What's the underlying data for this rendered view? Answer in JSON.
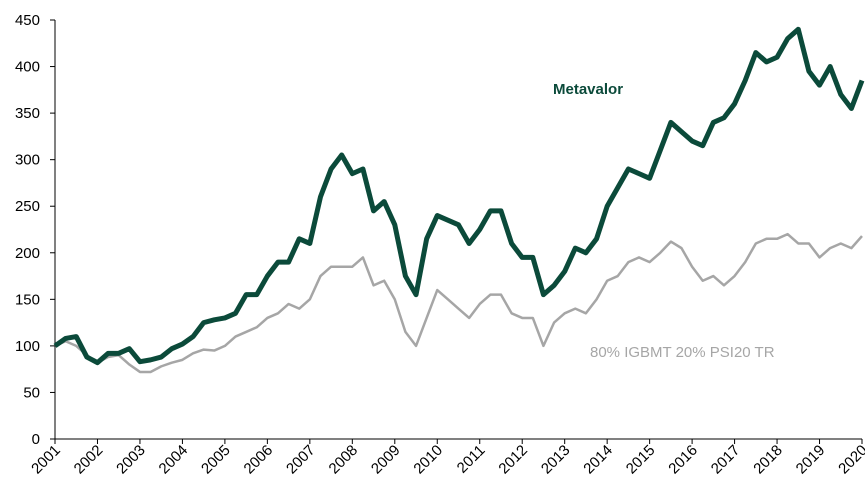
{
  "chart_data": {
    "type": "line",
    "x": [
      2001.0,
      2001.25,
      2001.5,
      2001.75,
      2002.0,
      2002.25,
      2002.5,
      2002.75,
      2003.0,
      2003.25,
      2003.5,
      2003.75,
      2004.0,
      2004.25,
      2004.5,
      2004.75,
      2005.0,
      2005.25,
      2005.5,
      2005.75,
      2006.0,
      2006.25,
      2006.5,
      2006.75,
      2007.0,
      2007.25,
      2007.5,
      2007.75,
      2008.0,
      2008.25,
      2008.5,
      2008.75,
      2009.0,
      2009.25,
      2009.5,
      2009.75,
      2010.0,
      2010.25,
      2010.5,
      2010.75,
      2011.0,
      2011.25,
      2011.5,
      2011.75,
      2012.0,
      2012.25,
      2012.5,
      2012.75,
      2013.0,
      2013.25,
      2013.5,
      2013.75,
      2014.0,
      2014.25,
      2014.5,
      2014.75,
      2015.0,
      2015.25,
      2015.5,
      2015.75,
      2016.0,
      2016.25,
      2016.5,
      2016.75,
      2017.0,
      2017.25,
      2017.5,
      2017.75,
      2018.0,
      2018.25,
      2018.5,
      2018.75,
      2019.0,
      2019.25,
      2019.5,
      2019.75,
      2020.0
    ],
    "series": [
      {
        "name": "80% IGBMT 20% PSI20 TR",
        "color": "#a6a6a6",
        "width": 2.5,
        "values": [
          100,
          105,
          100,
          90,
          82,
          88,
          90,
          80,
          72,
          72,
          78,
          82,
          85,
          92,
          96,
          95,
          100,
          110,
          115,
          120,
          130,
          135,
          145,
          140,
          150,
          175,
          185,
          185,
          185,
          195,
          165,
          170,
          150,
          115,
          100,
          130,
          160,
          150,
          140,
          130,
          145,
          155,
          155,
          135,
          130,
          130,
          100,
          125,
          135,
          140,
          135,
          150,
          170,
          175,
          190,
          195,
          190,
          200,
          212,
          205,
          185,
          170,
          175,
          165,
          175,
          190,
          210,
          215,
          215,
          220,
          210,
          210,
          195,
          205,
          210,
          205,
          218
        ]
      },
      {
        "name": "Metavalor",
        "color": "#0b4a3a",
        "width": 5,
        "values": [
          100,
          108,
          110,
          88,
          82,
          92,
          92,
          97,
          83,
          85,
          88,
          97,
          102,
          110,
          125,
          128,
          130,
          135,
          155,
          155,
          175,
          190,
          190,
          215,
          210,
          260,
          290,
          305,
          285,
          290,
          245,
          255,
          230,
          175,
          155,
          215,
          240,
          235,
          230,
          210,
          225,
          245,
          245,
          210,
          195,
          195,
          155,
          165,
          180,
          205,
          200,
          215,
          250,
          270,
          290,
          285,
          280,
          310,
          340,
          330,
          320,
          315,
          340,
          345,
          360,
          385,
          415,
          405,
          410,
          430,
          440,
          395,
          380,
          400,
          370,
          355,
          385
        ]
      }
    ],
    "xlim": [
      2001,
      2020
    ],
    "xticks": [
      2001,
      2002,
      2003,
      2004,
      2005,
      2006,
      2007,
      2008,
      2009,
      2010,
      2011,
      2012,
      2013,
      2014,
      2015,
      2016,
      2017,
      2018,
      2019,
      2020
    ],
    "ylim": [
      0,
      450
    ],
    "yticks": [
      0,
      50,
      100,
      150,
      200,
      250,
      300,
      350,
      400,
      450
    ]
  }
}
